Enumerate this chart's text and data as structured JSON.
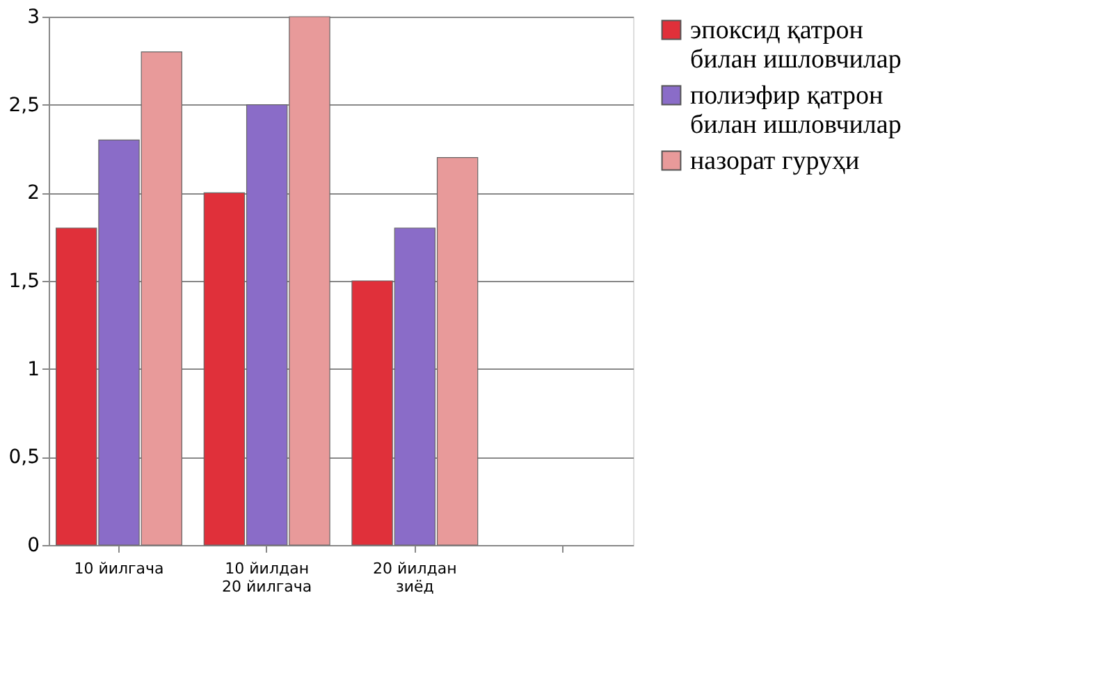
{
  "chart_data": {
    "type": "bar",
    "categories": [
      "10 йилгача",
      "10 йилдан 20 йилгача",
      "20 йилдан зиёд",
      null
    ],
    "series": [
      {
        "name": "эпоксид қатрон билан ишловчилар",
        "color": "#e0303a",
        "values": [
          1.8,
          2.0,
          1.5,
          null
        ]
      },
      {
        "name": "полиэфир қатрон билан ишловчилар",
        "color": "#8a6cc8",
        "values": [
          2.3,
          2.5,
          1.8,
          null
        ]
      },
      {
        "name": "назорат гуруҳи",
        "color": "#e89a9a",
        "values": [
          2.8,
          3.0,
          2.2,
          null
        ]
      }
    ],
    "ylim": [
      0,
      3
    ],
    "yticks": [
      0,
      {
        "value": 0.5,
        "label": "0,5"
      },
      1,
      {
        "value": 1.5,
        "label": "1,5"
      },
      2,
      {
        "value": 2.5,
        "label": "2,5"
      },
      3
    ],
    "grid": "y",
    "legend": "right"
  }
}
